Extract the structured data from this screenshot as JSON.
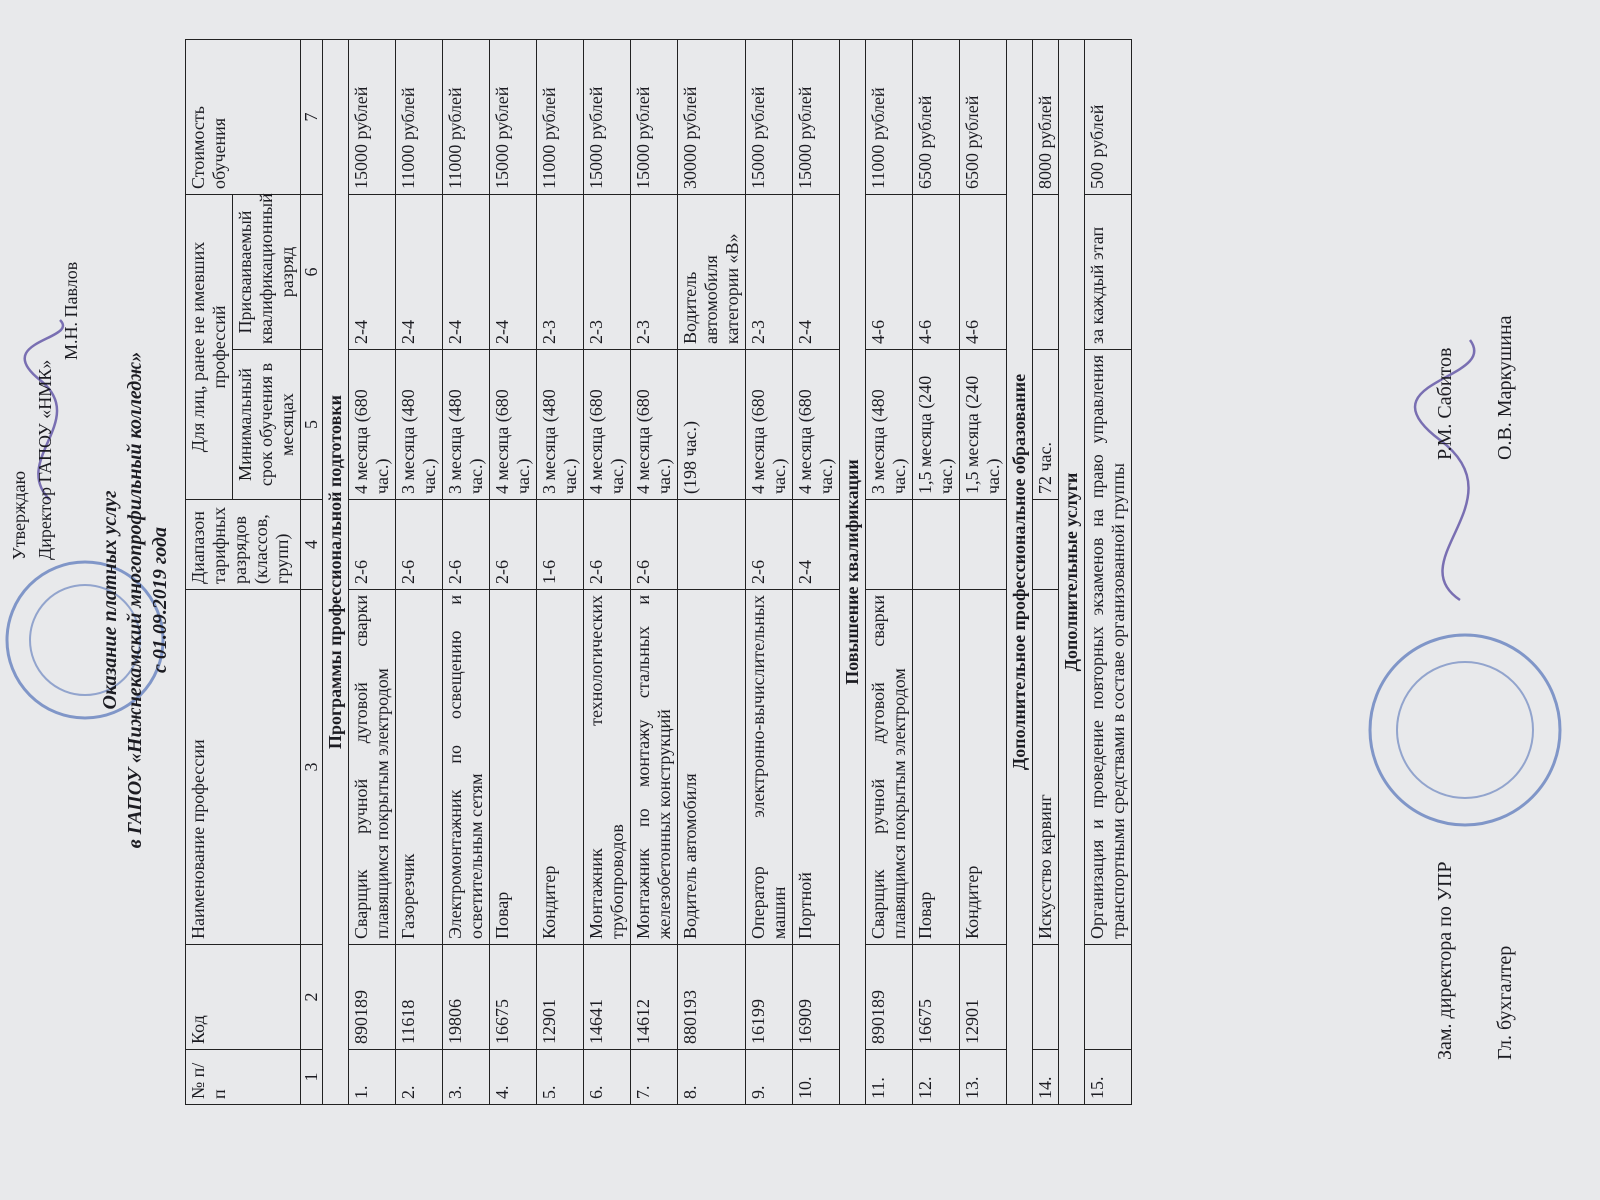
{
  "header": {
    "approve": "Утверждаю",
    "position": "Директор ГАПОУ «НМК»",
    "signer": "М.Н. Павлов"
  },
  "title": {
    "line1": "Оказание платных услуг",
    "line2": "в ГАПОУ «Нижнекамский многопрофильный колледж»",
    "line3": "с 01.09.2019 года"
  },
  "table": {
    "columns": {
      "num": "№ п/п",
      "code": "Код",
      "name": "Наименование профессии",
      "range": "Диапазон тарифных разрядов (классов, групп)",
      "group": "Для лиц, ранее не имевших профессий",
      "term": "Минимальный срок обучения в месяцах",
      "qual": "Присваиваемый квалификационный разряд",
      "cost": "Стоимость обучения"
    },
    "column_numbers": [
      1,
      2,
      3,
      4,
      5,
      6,
      7
    ],
    "sections": [
      {
        "title": "Программы профессиональной подготовки",
        "rows": [
          [
            "1.",
            "890189",
            "Сварщик ручной дуговой сварки плавящимся покрытым электродом",
            "2-6",
            "4 месяца (680 час.)",
            "2-4",
            "15000 рублей"
          ],
          [
            "2.",
            "11618",
            "Газорезчик",
            "2-6",
            "3 месяца (480 час.)",
            "2-4",
            "11000 рублей"
          ],
          [
            "3.",
            "19806",
            "Электромонтажник по освещению и осветительным сетям",
            "2-6",
            "3 месяца (480 час.)",
            "2-4",
            "11000 рублей"
          ],
          [
            "4.",
            "16675",
            "Повар",
            "2-6",
            "4 месяца (680 час.)",
            "2-4",
            "15000 рублей"
          ],
          [
            "5.",
            "12901",
            "Кондитер",
            "1-6",
            "3 месяца (480 час.)",
            "2-3",
            "11000 рублей"
          ],
          [
            "6.",
            "14641",
            "Монтажник технологических трубопроводов",
            "2-6",
            "4 месяца (680 час.)",
            "2-3",
            "15000 рублей"
          ],
          [
            "7.",
            "14612",
            "Монтажник по монтажу стальных и железобетонных конструкций",
            "2-6",
            "4 месяца (680 час.)",
            "2-3",
            "15000 рублей"
          ],
          [
            "8.",
            "880193",
            "Водитель автомобиля",
            null,
            "(198 час.)",
            "Водитель автомобиля категории «В»",
            "30000 рублей"
          ],
          [
            "9.",
            "16199",
            "Оператор электронно-вычислительных машин",
            "2-6",
            "4 месяца (680 час.)",
            "2-3",
            "15000 рублей"
          ],
          [
            "10.",
            "16909",
            "Портной",
            "2-4",
            "4 месяца (680 час.)",
            "2-4",
            "15000 рублей"
          ]
        ]
      },
      {
        "title": "Повышение квалификации",
        "rows": [
          [
            "11.",
            "890189",
            "Сварщик ручной дуговой сварки плавящимся покрытым электродом",
            null,
            "3 месяца (480 час.)",
            "4-6",
            "11000 рублей"
          ],
          [
            "12.",
            "16675",
            "Повар",
            null,
            "1,5 месяца (240 час.)",
            "4-6",
            "6500 рублей"
          ],
          [
            "13.",
            "12901",
            "Кондитер",
            null,
            "1,5 месяца (240 час.)",
            "4-6",
            "6500 рублей"
          ]
        ]
      },
      {
        "title": "Дополнительное профессиональное образование",
        "rows": [
          [
            "14.",
            null,
            "Искусство карвинг",
            null,
            "72 час.",
            null,
            "8000 рублей"
          ]
        ]
      },
      {
        "title": "Дополнительные услуги",
        "rows": [
          [
            "15.",
            null,
            "Организация и проведение повторных экзаменов на право управления транспортными средствами в составе организованной группы",
            "за каждый этап",
            "500 рублей"
          ]
        ]
      }
    ]
  },
  "signatures": [
    {
      "position": "Зам. директора по УПР",
      "name": "Р.М. Сабитов"
    },
    {
      "position": "Гл. бухгалтер",
      "name": "О.В. Маркушина"
    }
  ]
}
